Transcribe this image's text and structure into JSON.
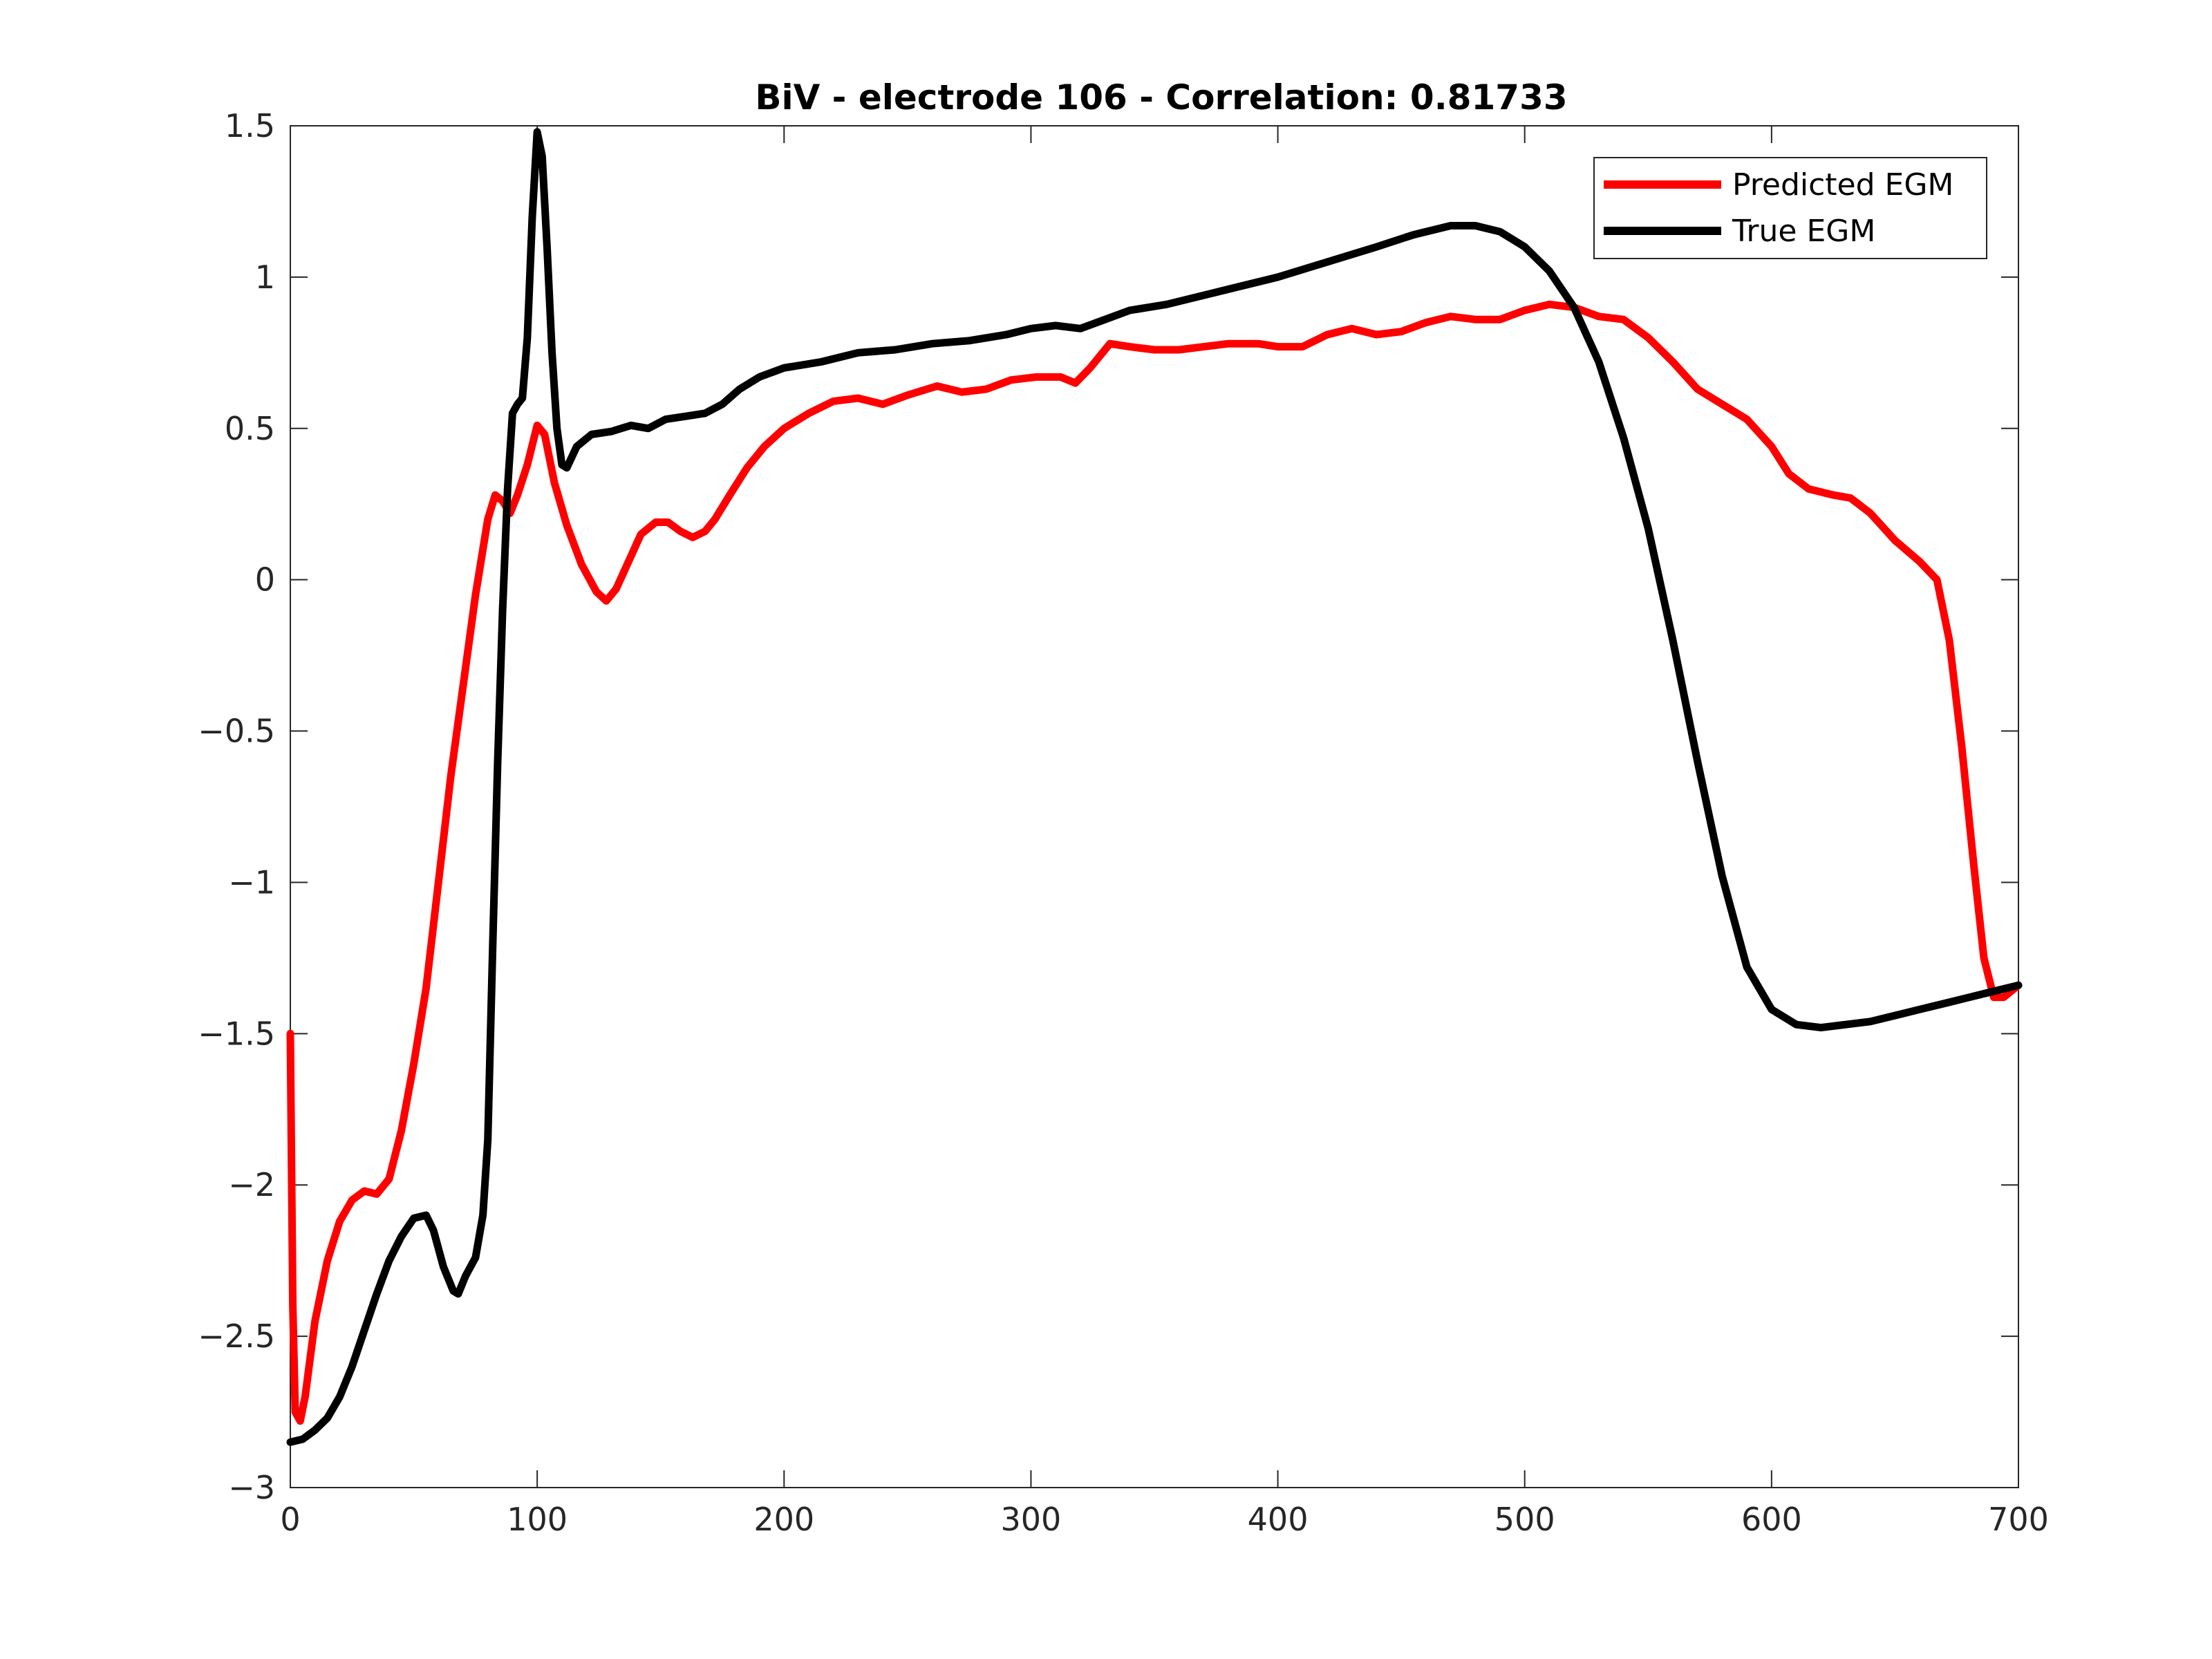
{
  "chart_data": {
    "type": "line",
    "title": "BiV - electrode 106 - Correlation: 0.81733",
    "xlabel": "",
    "ylabel": "",
    "xlim": [
      0,
      700
    ],
    "ylim": [
      -3,
      1.5
    ],
    "xticks": [
      0,
      100,
      200,
      300,
      400,
      500,
      600,
      700
    ],
    "xtick_labels": [
      "0",
      "100",
      "200",
      "300",
      "400",
      "500",
      "600",
      "700"
    ],
    "yticks": [
      -3,
      -2.5,
      -2,
      -1.5,
      -1,
      -0.5,
      0,
      0.5,
      1,
      1.5
    ],
    "ytick_labels": [
      "−3",
      "−2.5",
      "−2",
      "−1.5",
      "−1",
      "−0.5",
      "0",
      "0.5",
      "1",
      "1.5"
    ],
    "grid": false,
    "legend_position": "top-right",
    "series": [
      {
        "name": "Predicted EGM",
        "color": "#ff0000",
        "points": [
          [
            0,
            -1.5
          ],
          [
            1,
            -2.4
          ],
          [
            2,
            -2.75
          ],
          [
            4,
            -2.78
          ],
          [
            6,
            -2.7
          ],
          [
            10,
            -2.45
          ],
          [
            15,
            -2.25
          ],
          [
            20,
            -2.12
          ],
          [
            25,
            -2.05
          ],
          [
            30,
            -2.02
          ],
          [
            35,
            -2.03
          ],
          [
            40,
            -1.98
          ],
          [
            45,
            -1.82
          ],
          [
            50,
            -1.6
          ],
          [
            55,
            -1.35
          ],
          [
            60,
            -1.0
          ],
          [
            65,
            -0.65
          ],
          [
            70,
            -0.35
          ],
          [
            75,
            -0.05
          ],
          [
            80,
            0.2
          ],
          [
            83,
            0.28
          ],
          [
            86,
            0.26
          ],
          [
            89,
            0.22
          ],
          [
            92,
            0.28
          ],
          [
            96,
            0.38
          ],
          [
            100,
            0.51
          ],
          [
            103,
            0.48
          ],
          [
            107,
            0.32
          ],
          [
            112,
            0.18
          ],
          [
            118,
            0.05
          ],
          [
            124,
            -0.04
          ],
          [
            128,
            -0.07
          ],
          [
            132,
            -0.03
          ],
          [
            137,
            0.06
          ],
          [
            142,
            0.15
          ],
          [
            148,
            0.19
          ],
          [
            153,
            0.19
          ],
          [
            158,
            0.16
          ],
          [
            163,
            0.14
          ],
          [
            168,
            0.16
          ],
          [
            172,
            0.2
          ],
          [
            178,
            0.28
          ],
          [
            185,
            0.37
          ],
          [
            192,
            0.44
          ],
          [
            200,
            0.5
          ],
          [
            210,
            0.55
          ],
          [
            220,
            0.59
          ],
          [
            230,
            0.6
          ],
          [
            240,
            0.58
          ],
          [
            250,
            0.61
          ],
          [
            262,
            0.64
          ],
          [
            272,
            0.62
          ],
          [
            282,
            0.63
          ],
          [
            292,
            0.66
          ],
          [
            302,
            0.67
          ],
          [
            312,
            0.67
          ],
          [
            318,
            0.65
          ],
          [
            324,
            0.7
          ],
          [
            332,
            0.78
          ],
          [
            340,
            0.77
          ],
          [
            350,
            0.76
          ],
          [
            360,
            0.76
          ],
          [
            370,
            0.77
          ],
          [
            380,
            0.78
          ],
          [
            392,
            0.78
          ],
          [
            400,
            0.77
          ],
          [
            410,
            0.77
          ],
          [
            420,
            0.81
          ],
          [
            430,
            0.83
          ],
          [
            440,
            0.81
          ],
          [
            450,
            0.82
          ],
          [
            460,
            0.85
          ],
          [
            470,
            0.87
          ],
          [
            480,
            0.86
          ],
          [
            490,
            0.86
          ],
          [
            500,
            0.89
          ],
          [
            510,
            0.91
          ],
          [
            520,
            0.9
          ],
          [
            530,
            0.87
          ],
          [
            540,
            0.86
          ],
          [
            550,
            0.8
          ],
          [
            560,
            0.72
          ],
          [
            570,
            0.63
          ],
          [
            580,
            0.58
          ],
          [
            590,
            0.53
          ],
          [
            600,
            0.44
          ],
          [
            607,
            0.35
          ],
          [
            615,
            0.3
          ],
          [
            625,
            0.28
          ],
          [
            632,
            0.27
          ],
          [
            640,
            0.22
          ],
          [
            650,
            0.13
          ],
          [
            660,
            0.06
          ],
          [
            667,
            0.0
          ],
          [
            672,
            -0.2
          ],
          [
            677,
            -0.55
          ],
          [
            682,
            -0.95
          ],
          [
            686,
            -1.25
          ],
          [
            690,
            -1.38
          ],
          [
            694,
            -1.38
          ],
          [
            700,
            -1.34
          ]
        ]
      },
      {
        "name": "True EGM",
        "color": "#000000",
        "points": [
          [
            0,
            -2.85
          ],
          [
            5,
            -2.84
          ],
          [
            10,
            -2.81
          ],
          [
            15,
            -2.77
          ],
          [
            20,
            -2.7
          ],
          [
            25,
            -2.6
          ],
          [
            30,
            -2.48
          ],
          [
            35,
            -2.36
          ],
          [
            40,
            -2.25
          ],
          [
            45,
            -2.17
          ],
          [
            50,
            -2.11
          ],
          [
            55,
            -2.1
          ],
          [
            58,
            -2.15
          ],
          [
            62,
            -2.27
          ],
          [
            66,
            -2.35
          ],
          [
            68,
            -2.36
          ],
          [
            71,
            -2.3
          ],
          [
            75,
            -2.24
          ],
          [
            78,
            -2.1
          ],
          [
            80,
            -1.85
          ],
          [
            82,
            -1.2
          ],
          [
            84,
            -0.6
          ],
          [
            86,
            -0.1
          ],
          [
            88,
            0.3
          ],
          [
            90,
            0.55
          ],
          [
            92,
            0.58
          ],
          [
            94,
            0.6
          ],
          [
            96,
            0.8
          ],
          [
            98,
            1.2
          ],
          [
            100,
            1.48
          ],
          [
            102,
            1.4
          ],
          [
            104,
            1.1
          ],
          [
            106,
            0.75
          ],
          [
            108,
            0.5
          ],
          [
            110,
            0.38
          ],
          [
            112,
            0.37
          ],
          [
            116,
            0.44
          ],
          [
            122,
            0.48
          ],
          [
            130,
            0.49
          ],
          [
            138,
            0.51
          ],
          [
            145,
            0.5
          ],
          [
            152,
            0.53
          ],
          [
            160,
            0.54
          ],
          [
            168,
            0.55
          ],
          [
            175,
            0.58
          ],
          [
            182,
            0.63
          ],
          [
            190,
            0.67
          ],
          [
            200,
            0.7
          ],
          [
            215,
            0.72
          ],
          [
            230,
            0.75
          ],
          [
            245,
            0.76
          ],
          [
            260,
            0.78
          ],
          [
            275,
            0.79
          ],
          [
            290,
            0.81
          ],
          [
            300,
            0.83
          ],
          [
            310,
            0.84
          ],
          [
            320,
            0.83
          ],
          [
            330,
            0.86
          ],
          [
            340,
            0.89
          ],
          [
            355,
            0.91
          ],
          [
            370,
            0.94
          ],
          [
            385,
            0.97
          ],
          [
            400,
            1.0
          ],
          [
            420,
            1.05
          ],
          [
            440,
            1.1
          ],
          [
            455,
            1.14
          ],
          [
            470,
            1.17
          ],
          [
            480,
            1.17
          ],
          [
            490,
            1.15
          ],
          [
            500,
            1.1
          ],
          [
            510,
            1.02
          ],
          [
            520,
            0.9
          ],
          [
            530,
            0.72
          ],
          [
            540,
            0.47
          ],
          [
            550,
            0.17
          ],
          [
            560,
            -0.2
          ],
          [
            570,
            -0.6
          ],
          [
            580,
            -0.98
          ],
          [
            590,
            -1.28
          ],
          [
            600,
            -1.42
          ],
          [
            610,
            -1.47
          ],
          [
            620,
            -1.48
          ],
          [
            630,
            -1.47
          ],
          [
            640,
            -1.46
          ],
          [
            650,
            -1.44
          ],
          [
            660,
            -1.42
          ],
          [
            670,
            -1.4
          ],
          [
            680,
            -1.38
          ],
          [
            690,
            -1.36
          ],
          [
            700,
            -1.34
          ]
        ]
      }
    ]
  }
}
